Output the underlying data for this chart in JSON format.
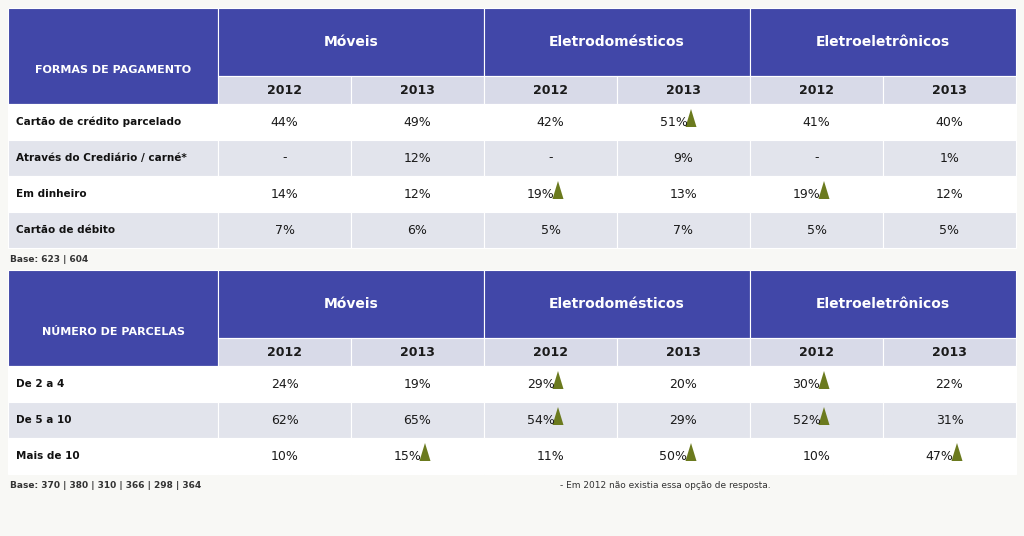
{
  "table1_title_left": "FORMAS DE PAGAMENTO",
  "table1_headers": [
    "Móveis",
    "Eletrodomésticos",
    "Eletroeletrônicos"
  ],
  "table1_subheaders": [
    "2012",
    "2013",
    "2012",
    "2013",
    "2012",
    "2013"
  ],
  "table1_rows": [
    {
      "label": "Cartão de crédito parcelado",
      "values": [
        "44%",
        "49%",
        "42%",
        "51%",
        "41%",
        "40%"
      ],
      "arrows": [
        0,
        0,
        0,
        1,
        0,
        0
      ]
    },
    {
      "label": "Através do Crediário / carné*",
      "values": [
        "-",
        "12%",
        "-",
        "9%",
        "-",
        "1%"
      ],
      "arrows": [
        0,
        0,
        0,
        0,
        0,
        0
      ]
    },
    {
      "label": "Em dinheiro",
      "values": [
        "14%",
        "12%",
        "19%",
        "13%",
        "19%",
        "12%"
      ],
      "arrows": [
        0,
        0,
        1,
        0,
        1,
        0
      ]
    },
    {
      "label": "Cartão de débito",
      "values": [
        "7%",
        "6%",
        "5%",
        "7%",
        "5%",
        "5%"
      ],
      "arrows": [
        0,
        0,
        0,
        0,
        0,
        0
      ]
    }
  ],
  "table1_base": "Base: 623 | 604",
  "table2_title_left": "NÚMERO DE PARCELAS",
  "table2_headers": [
    "Móveis",
    "Eletrodomésticos",
    "Eletroeletrônicos"
  ],
  "table2_subheaders": [
    "2012",
    "2013",
    "2012",
    "2013",
    "2012",
    "2013"
  ],
  "table2_rows": [
    {
      "label": "De 2 a 4",
      "values": [
        "24%",
        "19%",
        "29%",
        "20%",
        "30%",
        "22%"
      ],
      "arrows": [
        0,
        0,
        1,
        0,
        1,
        0
      ]
    },
    {
      "label": "De 5 a 10",
      "values": [
        "62%",
        "65%",
        "54%",
        "29%",
        "52%",
        "31%"
      ],
      "arrows": [
        0,
        0,
        1,
        0,
        1,
        0
      ]
    },
    {
      "label": "Mais de 10",
      "values": [
        "10%",
        "15%",
        "11%",
        "50%",
        "10%",
        "47%"
      ],
      "arrows": [
        0,
        1,
        0,
        1,
        0,
        1
      ]
    }
  ],
  "table2_base": "Base: 370 | 380 | 310 | 366 | 298 | 364",
  "table2_note": "- Em 2012 não existia essa opção de resposta.",
  "header_bg_color": "#4147a8",
  "subheader_bg_color": "#6775c8",
  "subheader_row_bg": "#d8dae8",
  "row_odd_color": "#ffffff",
  "row_even_color": "#e2e4ec",
  "header_text_color": "#ffffff",
  "data_text_color": "#1a1a1a",
  "arrow_color": "#6b7a1e",
  "label_bold_color": "#111111",
  "base_text_color": "#333333",
  "bg_color": "#f8f8f5",
  "border_color": "#bbbbcc"
}
